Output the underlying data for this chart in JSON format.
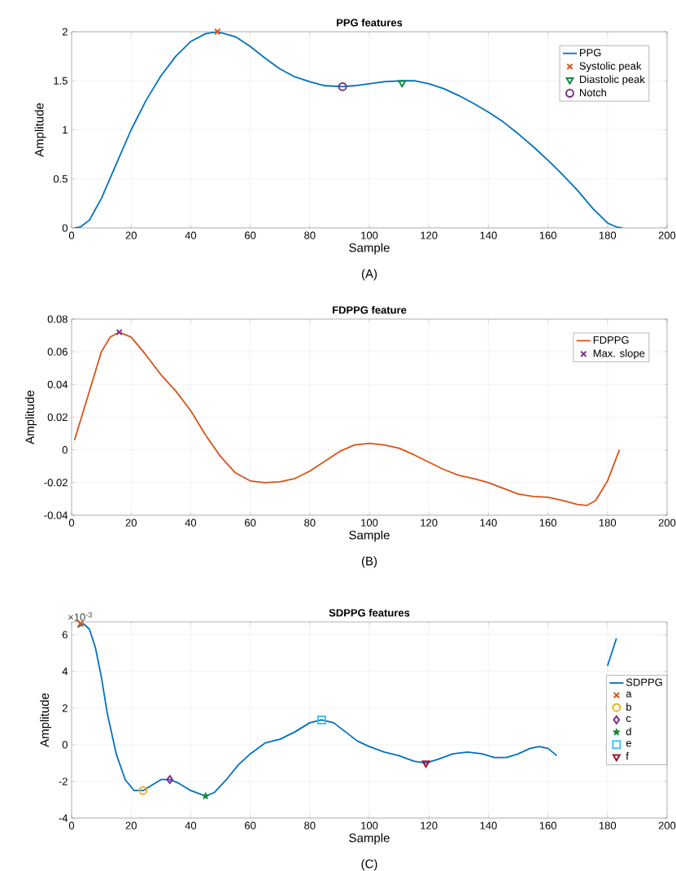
{
  "chart_data": [
    {
      "type": "line",
      "title": "PPG features",
      "xlabel": "Sample",
      "ylabel": "Amplitude",
      "annotations": [
        "(A)"
      ],
      "xlim": [
        0,
        200
      ],
      "xticks": [
        0,
        20,
        40,
        60,
        80,
        100,
        120,
        140,
        160,
        180,
        200
      ],
      "ylim": [
        0,
        2
      ],
      "yticks": [
        0,
        0.5,
        1,
        1.5,
        2
      ],
      "grid": true,
      "legend": "top right",
      "series": [
        {
          "name": "PPG",
          "color": "#0072bd",
          "x": [
            1,
            3,
            6,
            10,
            15,
            20,
            25,
            30,
            35,
            40,
            45,
            49,
            55,
            60,
            65,
            70,
            75,
            80,
            85,
            91,
            95,
            100,
            105,
            111,
            115,
            120,
            125,
            130,
            135,
            140,
            145,
            150,
            155,
            160,
            165,
            170,
            175,
            180,
            183,
            185
          ],
          "values": [
            0,
            0.01,
            0.08,
            0.3,
            0.65,
            1.0,
            1.3,
            1.55,
            1.75,
            1.9,
            1.98,
            2.0,
            1.95,
            1.85,
            1.73,
            1.62,
            1.54,
            1.49,
            1.45,
            1.44,
            1.45,
            1.47,
            1.49,
            1.5,
            1.5,
            1.47,
            1.42,
            1.35,
            1.27,
            1.18,
            1.08,
            0.96,
            0.83,
            0.69,
            0.54,
            0.38,
            0.2,
            0.05,
            0.01,
            0
          ]
        },
        {
          "name": "Systolic peak",
          "type": "scatter",
          "marker": "cross",
          "color": "#d95319",
          "x": [
            49
          ],
          "values": [
            2.0
          ]
        },
        {
          "name": "Diastolic peak",
          "type": "scatter",
          "marker": "triangle",
          "color": "#138a3f",
          "x": [
            111
          ],
          "values": [
            1.48
          ]
        },
        {
          "name": "Notch",
          "type": "scatter",
          "marker": "circle",
          "color": "#7e2f8e",
          "x": [
            91
          ],
          "values": [
            1.44
          ]
        }
      ]
    },
    {
      "type": "line",
      "title": "FDPPG feature",
      "xlabel": "Sample",
      "ylabel": "Amplitude",
      "annotations": [
        "(B)"
      ],
      "xlim": [
        0,
        200
      ],
      "xticks": [
        0,
        20,
        40,
        60,
        80,
        100,
        120,
        140,
        160,
        180,
        200
      ],
      "ylim": [
        -0.04,
        0.08
      ],
      "yticks": [
        -0.04,
        -0.02,
        0,
        0.02,
        0.04,
        0.06,
        0.08
      ],
      "grid": true,
      "legend": "top right",
      "series": [
        {
          "name": "FDPPG",
          "color": "#d95319",
          "x": [
            1,
            5,
            10,
            13,
            16,
            20,
            25,
            30,
            35,
            40,
            45,
            50,
            55,
            60,
            65,
            70,
            75,
            80,
            85,
            90,
            95,
            100,
            105,
            110,
            115,
            120,
            125,
            130,
            135,
            140,
            145,
            150,
            155,
            160,
            165,
            170,
            173,
            176,
            180,
            184
          ],
          "values": [
            0.006,
            0.03,
            0.06,
            0.069,
            0.072,
            0.069,
            0.058,
            0.046,
            0.036,
            0.024,
            0.009,
            -0.004,
            -0.014,
            -0.019,
            -0.02,
            -0.0195,
            -0.0175,
            -0.013,
            -0.007,
            -0.001,
            0.003,
            0.004,
            0.003,
            0.001,
            -0.003,
            -0.0075,
            -0.012,
            -0.0155,
            -0.0175,
            -0.02,
            -0.0235,
            -0.027,
            -0.0285,
            -0.029,
            -0.031,
            -0.0335,
            -0.034,
            -0.031,
            -0.019,
            0
          ]
        },
        {
          "name": "Max. slope",
          "type": "scatter",
          "marker": "cross",
          "color": "#7e2f8e",
          "x": [
            16
          ],
          "values": [
            0.072
          ]
        }
      ]
    },
    {
      "type": "line",
      "title": "SDPPG features",
      "xlabel": "Sample",
      "ylabel": "Amplitude",
      "annotations": [
        "×10$^{-3}$",
        "(C)"
      ],
      "xlim": [
        0,
        200
      ],
      "xticks": [
        0,
        20,
        40,
        60,
        80,
        100,
        120,
        140,
        160,
        180,
        200
      ],
      "ylim": [
        -4,
        6.7
      ],
      "yticks": [
        -4,
        -2,
        0,
        2,
        4,
        6
      ],
      "grid": true,
      "legend": "right",
      "series": [
        {
          "name": "SDPPG",
          "color": "#0072bd",
          "x": [
            2,
            4,
            6,
            8,
            10,
            12,
            15,
            18,
            21,
            24,
            27,
            30,
            33,
            36,
            40,
            45,
            48,
            52,
            56,
            60,
            65,
            70,
            75,
            80,
            84,
            88,
            92,
            96,
            100,
            105,
            110,
            115,
            119,
            123,
            128,
            133,
            138,
            142,
            146,
            150,
            154,
            157,
            160,
            163,
            170,
            180,
            183
          ],
          "values": [
            6.4,
            6.6,
            6.3,
            5.3,
            3.7,
            1.7,
            -0.5,
            -1.9,
            -2.5,
            -2.5,
            -2.2,
            -1.9,
            -1.9,
            -2.1,
            -2.5,
            -2.8,
            -2.6,
            -1.9,
            -1.1,
            -0.5,
            0.1,
            0.3,
            0.7,
            1.2,
            1.35,
            1.2,
            0.7,
            0.2,
            -0.1,
            -0.4,
            -0.6,
            -0.9,
            -1.0,
            -0.8,
            -0.5,
            -0.4,
            -0.5,
            -0.7,
            -0.7,
            -0.5,
            -0.2,
            -0.1,
            -0.2,
            -0.6,
            null,
            4.3,
            5.8
          ]
        },
        {
          "name": "a",
          "type": "scatter",
          "marker": "cross",
          "color": "#d95319",
          "x": [
            3
          ],
          "values": [
            6.6
          ]
        },
        {
          "name": "b",
          "type": "scatter",
          "marker": "circle",
          "color": "#edb120",
          "x": [
            24
          ],
          "values": [
            -2.5
          ]
        },
        {
          "name": "c",
          "type": "scatter",
          "marker": "diamond",
          "color": "#7e2f8e",
          "x": [
            33
          ],
          "values": [
            -1.9
          ]
        },
        {
          "name": "d",
          "type": "scatter",
          "marker": "star",
          "color": "#138a3f",
          "x": [
            45
          ],
          "values": [
            -2.8
          ]
        },
        {
          "name": "e",
          "type": "scatter",
          "marker": "square",
          "color": "#4dbeee",
          "x": [
            84
          ],
          "values": [
            1.35
          ]
        },
        {
          "name": "f",
          "type": "scatter",
          "marker": "triangle",
          "color": "#a2142f",
          "x": [
            119
          ],
          "values": [
            -1.0
          ]
        }
      ]
    }
  ]
}
